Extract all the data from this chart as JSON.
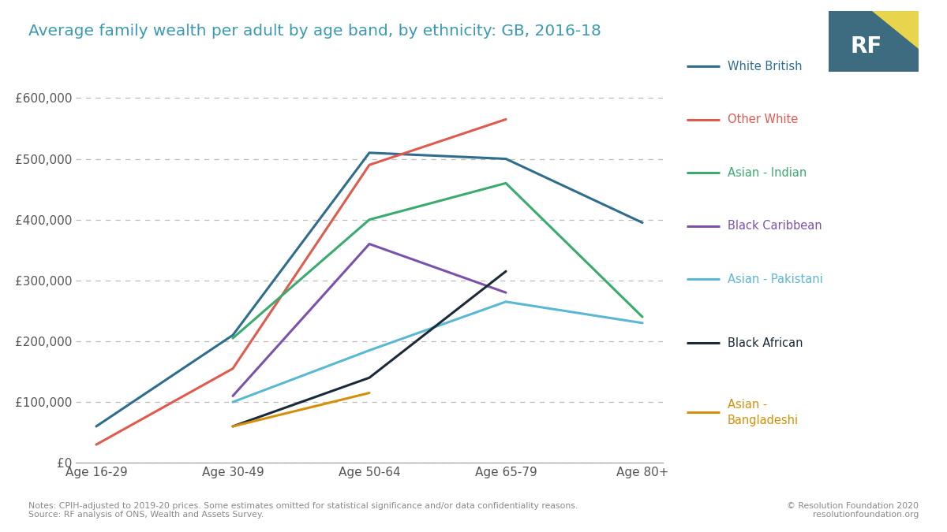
{
  "title": "Average family wealth per adult by age band, by ethnicity: GB, 2016-18",
  "x_labels": [
    "Age 16-29",
    "Age 30-49",
    "Age 50-64",
    "Age 65-79",
    "Age 80+"
  ],
  "series": [
    {
      "name": "White British",
      "color": "#2e6d8e",
      "values": [
        60000,
        210000,
        510000,
        500000,
        395000
      ]
    },
    {
      "name": "Other White",
      "color": "#e05a4e",
      "values": [
        30000,
        155000,
        490000,
        565000,
        null
      ]
    },
    {
      "name": "Asian - Indian",
      "color": "#3aaa6e",
      "values": [
        null,
        205000,
        400000,
        460000,
        240000
      ]
    },
    {
      "name": "Black Caribbean",
      "color": "#7b52ab",
      "values": [
        null,
        110000,
        360000,
        280000,
        null
      ]
    },
    {
      "name": "Asian - Pakistani",
      "color": "#5ab8d4",
      "values": [
        null,
        100000,
        185000,
        265000,
        230000
      ]
    },
    {
      "name": "Black African",
      "color": "#1a2a3a",
      "values": [
        null,
        60000,
        140000,
        315000,
        null
      ]
    },
    {
      "name": "Asian -\nBangladeshi",
      "color": "#d4900a",
      "values": [
        null,
        60000,
        115000,
        null,
        null
      ]
    }
  ],
  "ylim": [
    0,
    630000
  ],
  "yticks": [
    0,
    100000,
    200000,
    300000,
    400000,
    500000,
    600000
  ],
  "ytick_labels": [
    "£0",
    "£100,000",
    "£200,000",
    "£300,000",
    "£400,000",
    "£500,000",
    "£600,000"
  ],
  "notes": "Notes: CPIH-adjusted to 2019-20 prices. Some estimates omitted for statistical significance and/or data confidentiality reasons.\nSource: RF analysis of ONS, Wealth and Assets Survey.",
  "copyright": "© Resolution Foundation 2020\nresolutionfoundation.org",
  "background_color": "#ffffff",
  "plot_bg_color": "#ffffff",
  "title_color": "#3a9ab5",
  "line_width": 2.2,
  "logo_bg": "#3d6b80",
  "logo_triangle": "#e8d44d"
}
